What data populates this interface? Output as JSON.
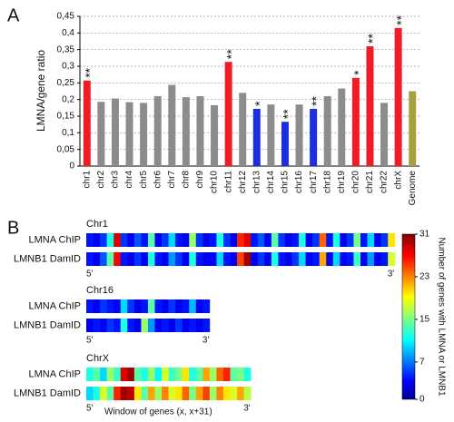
{
  "chart_data": [
    {
      "type": "bar",
      "panel": "A",
      "ylabel": "LMNA/gene ratio",
      "categories": [
        "chr1",
        "chr2",
        "chr3",
        "chr4",
        "chr5",
        "chr6",
        "chr7",
        "chr8",
        "chr9",
        "chr10",
        "chr11",
        "chr12",
        "chr13",
        "chr14",
        "chr15",
        "chr16",
        "chr17",
        "chr18",
        "chr19",
        "chr20",
        "chr21",
        "chr22",
        "chrX",
        "Genome"
      ],
      "values": [
        0.257,
        0.193,
        0.203,
        0.192,
        0.19,
        0.21,
        0.244,
        0.207,
        0.21,
        0.183,
        0.313,
        0.22,
        0.172,
        0.185,
        0.133,
        0.185,
        0.172,
        0.21,
        0.233,
        0.265,
        0.36,
        0.19,
        0.415,
        0.225
      ],
      "colors": [
        "#ee1c24",
        "#8c8c8c",
        "#8c8c8c",
        "#8c8c8c",
        "#8c8c8c",
        "#8c8c8c",
        "#8c8c8c",
        "#8c8c8c",
        "#8c8c8c",
        "#8c8c8c",
        "#ee1c24",
        "#8c8c8c",
        "#1c2fe0",
        "#8c8c8c",
        "#1c2fe0",
        "#8c8c8c",
        "#1c2fe0",
        "#8c8c8c",
        "#8c8c8c",
        "#ee1c24",
        "#ee1c24",
        "#8c8c8c",
        "#ee1c24",
        "#a8a040"
      ],
      "annotations": [
        "**",
        null,
        null,
        null,
        null,
        null,
        null,
        null,
        null,
        null,
        "**",
        null,
        "*",
        null,
        "**",
        null,
        "**",
        null,
        null,
        "*",
        "**",
        null,
        "**",
        null
      ],
      "ylim": [
        0,
        0.45
      ],
      "yticks": [
        0,
        {
          "value": 0.05,
          "label": "0,05"
        },
        {
          "value": 0.1,
          "label": "0,1"
        },
        {
          "value": 0.15,
          "label": "0,15"
        },
        {
          "value": 0.2,
          "label": "0,2"
        },
        {
          "value": 0.25,
          "label": "0,25"
        },
        {
          "value": 0.3,
          "label": "0,3"
        },
        {
          "value": 0.35,
          "label": "0,35"
        },
        {
          "value": 0.4,
          "label": "0,4"
        },
        {
          "value": 0.45,
          "label": "0,45"
        }
      ],
      "grid": true
    },
    {
      "type": "heatmap",
      "panel": "B",
      "start_label": "5'",
      "end_label": "3'",
      "xlabel": "Window of genes (x, x+31)",
      "groups": [
        {
          "title": "Chr1",
          "rows": [
            {
              "name": "LMNA ChIP",
              "values": [
                4,
                3,
                5,
                12,
                28,
                5,
                3,
                6,
                4,
                14,
                3,
                5,
                10,
                4,
                3,
                16,
                5,
                3,
                4,
                12,
                5,
                3,
                26,
                28,
                4,
                6,
                3,
                14,
                5,
                3,
                4,
                12,
                3,
                5,
                24,
                4,
                12,
                3,
                5,
                15,
                4,
                10,
                3,
                5,
                20
              ]
            },
            {
              "name": "LMNB1 DamID",
              "values": [
                4,
                3,
                6,
                14,
                27,
                4,
                3,
                5,
                3,
                12,
                4,
                3,
                8,
                5,
                3,
                12,
                4,
                3,
                3,
                10,
                4,
                3,
                25,
                30,
                3,
                5,
                3,
                12,
                4,
                3,
                5,
                10,
                3,
                4,
                22,
                3,
                10,
                3,
                4,
                13,
                3,
                8,
                3,
                4,
                18
              ]
            }
          ]
        },
        {
          "title": "Chr16",
          "rows": [
            {
              "name": "LMNA ChIP",
              "values": [
                4,
                3,
                5,
                4,
                3,
                10,
                5,
                3,
                4,
                14,
                4,
                3,
                5,
                3,
                4,
                9,
                3,
                4
              ]
            },
            {
              "name": "LMNB1 DamID",
              "values": [
                3,
                4,
                3,
                5,
                4,
                12,
                4,
                3,
                16,
                8,
                3,
                4,
                3,
                5,
                3,
                4,
                3,
                4
              ]
            }
          ]
        },
        {
          "title": "ChrX",
          "rows": [
            {
              "name": "LMNA ChIP",
              "values": [
                12,
                14,
                10,
                16,
                13,
                28,
                30,
                14,
                12,
                16,
                11,
                18,
                13,
                15,
                20,
                12,
                14,
                22,
                16,
                24,
                26,
                14,
                15,
                12
              ]
            },
            {
              "name": "LMNB1 DamID",
              "values": [
                10,
                12,
                18,
                14,
                26,
                30,
                29,
                20,
                14,
                22,
                16,
                23,
                18,
                20,
                24,
                15,
                22,
                25,
                16,
                23,
                20,
                18,
                22,
                17
              ]
            }
          ]
        }
      ],
      "colorbar": {
        "label": "Number of genes with LMNA or LMNB1",
        "lim": [
          0,
          31
        ],
        "ticks": [
          0,
          7,
          15,
          23,
          31
        ]
      }
    }
  ]
}
